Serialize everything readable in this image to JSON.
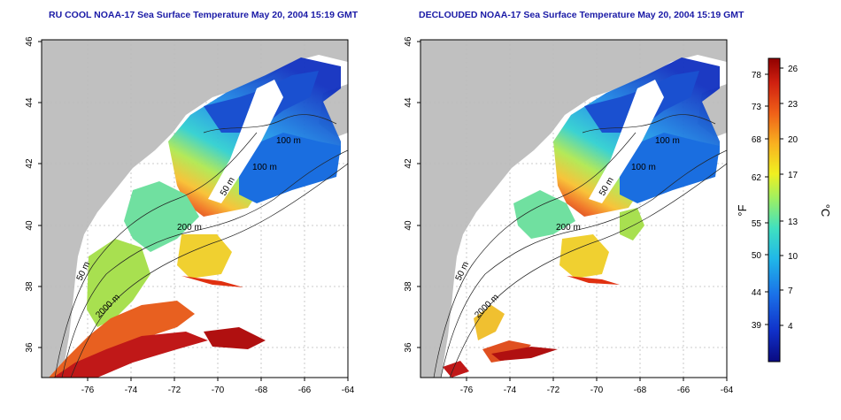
{
  "panels": [
    {
      "title": "RU COOL NOAA-17 Sea Surface Temperature May 20, 2004 15:19 GMT",
      "lat_ticks": [
        "46",
        "44",
        "42",
        "40",
        "38",
        "36"
      ],
      "lon_ticks": [
        "-76",
        "-74",
        "-72",
        "-70",
        "-68",
        "-66",
        "-64"
      ],
      "contour_labels": [
        "100 m",
        "100 m",
        "50 m",
        "200 m",
        "50 m",
        "2000 m"
      ]
    },
    {
      "title": "DECLOUDED NOAA-17 Sea Surface Temperature May 20, 2004 15:19 GMT",
      "lat_ticks": [
        "46",
        "44",
        "42",
        "40",
        "38",
        "36"
      ],
      "lon_ticks": [
        "-76",
        "-74",
        "-72",
        "-70",
        "-68",
        "-66",
        "-64"
      ],
      "contour_labels": [
        "100 m",
        "100 m",
        "50 m",
        "200 m",
        "50 m",
        "2000 m"
      ]
    }
  ],
  "colorbar": {
    "fahrenheit_label": "°F",
    "celsius_label": "°C",
    "fahrenheit_ticks": [
      "78",
      "73",
      "68",
      "62",
      "55",
      "50",
      "44",
      "39"
    ],
    "celsius_ticks": [
      "26",
      "23",
      "20",
      "17",
      "13",
      "10",
      "7",
      "4"
    ],
    "colors": [
      "#0a0a80",
      "#1030c8",
      "#1a70e8",
      "#20b8e8",
      "#40e0c0",
      "#a0f060",
      "#f0f020",
      "#f8b020",
      "#f06018",
      "#d02010",
      "#900000"
    ]
  },
  "colors": {
    "title": "#1a1aa6",
    "land": "#c0c0c0",
    "no_data": "#ffffff"
  }
}
